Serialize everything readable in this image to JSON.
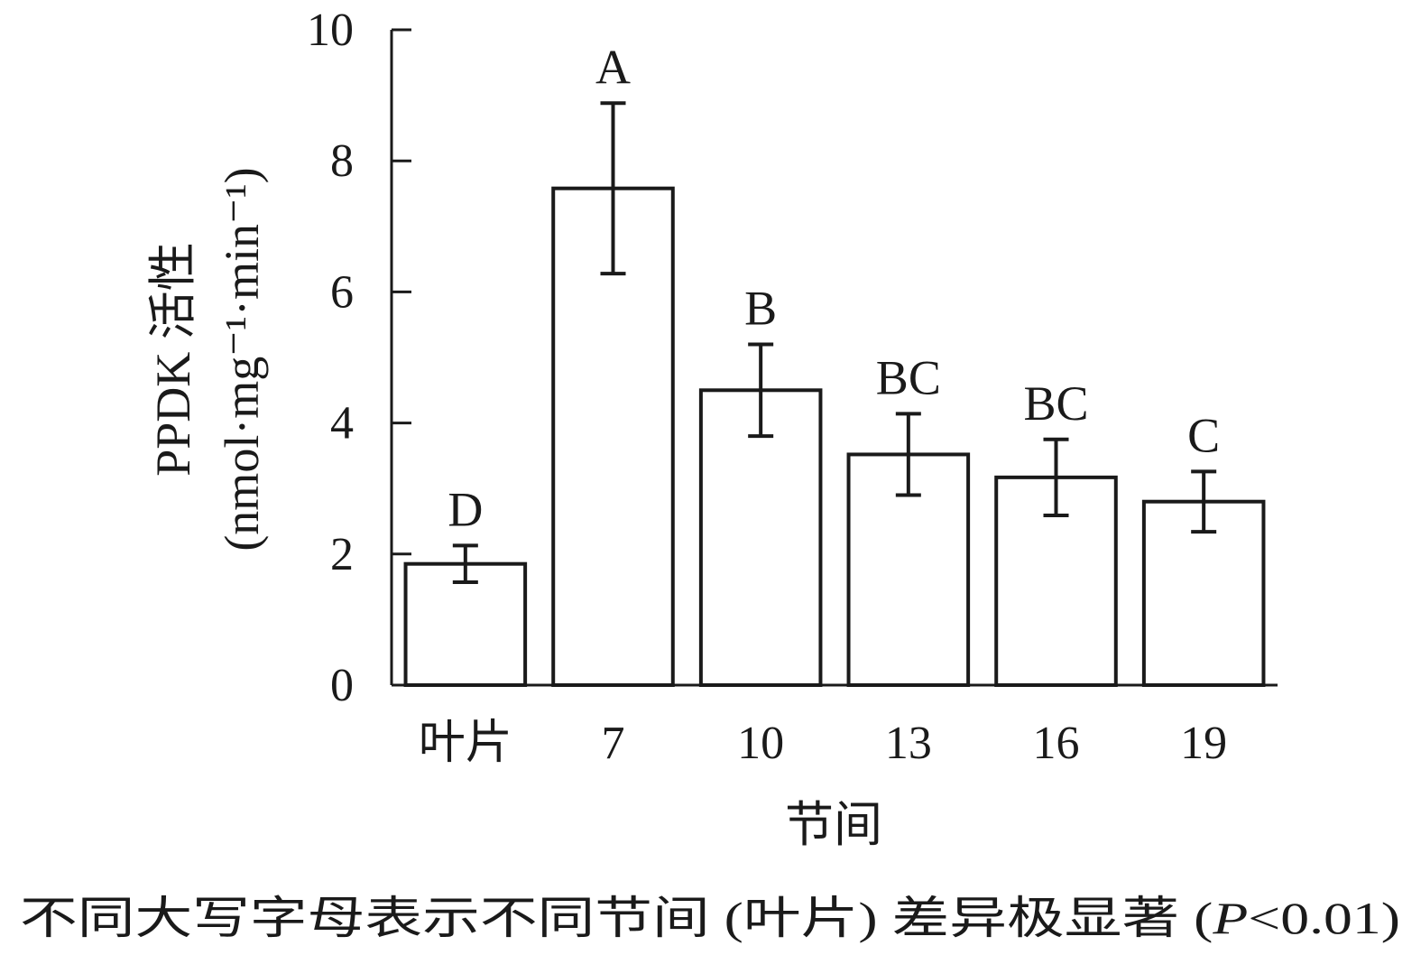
{
  "chart_data": {
    "type": "bar",
    "categories": [
      "叶片",
      "7",
      "10",
      "13",
      "16",
      "19"
    ],
    "values": [
      1.85,
      7.58,
      4.5,
      3.52,
      3.17,
      2.8
    ],
    "errors": [
      0.28,
      1.3,
      0.7,
      0.62,
      0.58,
      0.46
    ],
    "significance_labels": [
      "D",
      "A",
      "B",
      "BC",
      "BC",
      "C"
    ],
    "xlabel": "节间",
    "ylabel": "PPDK 活性",
    "ylabel_unit": "(nmol·mg⁻¹·min⁻¹)",
    "ylim": [
      0,
      10
    ],
    "yticks": [
      0,
      2,
      4,
      6,
      8,
      10
    ],
    "grid": false,
    "bar_fill": "#ffffff",
    "bar_stroke": "#1a1a1a"
  },
  "caption": {
    "before": "不同大写字母表示不同节间 (叶片) 差异极显著 (",
    "p": "P",
    "after": "<0.01)"
  }
}
